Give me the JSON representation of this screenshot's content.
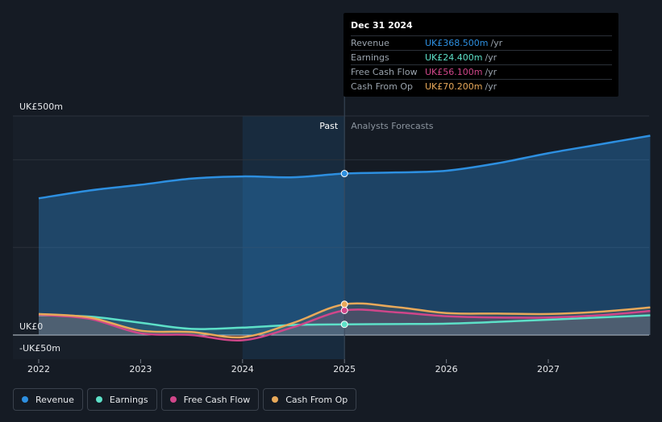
{
  "chart_data": {
    "type": "line",
    "y_axis": {
      "top_label": "UK£500m",
      "zero_label": "UK£0",
      "bottom_label": "-UK£50m",
      "ylim": [
        -50,
        500
      ]
    },
    "x_ticks": [
      "2022",
      "2023",
      "2024",
      "2025",
      "2026",
      "2027"
    ],
    "divider_labels": {
      "past": "Past",
      "forecast": "Analysts Forecasts"
    },
    "series": [
      {
        "name": "Revenue",
        "color": "#2d8fe0",
        "points": [
          [
            2022.0,
            312
          ],
          [
            2022.5,
            330
          ],
          [
            2023.0,
            343
          ],
          [
            2023.5,
            357
          ],
          [
            2024.0,
            362
          ],
          [
            2024.5,
            360
          ],
          [
            2025.0,
            368.5
          ],
          [
            2025.5,
            371
          ],
          [
            2026.0,
            375
          ],
          [
            2026.5,
            392
          ],
          [
            2027.0,
            415
          ],
          [
            2027.5,
            435
          ],
          [
            2028.0,
            455
          ]
        ]
      },
      {
        "name": "Earnings",
        "color": "#5de0c8",
        "points": [
          [
            2022.0,
            45
          ],
          [
            2022.5,
            42
          ],
          [
            2023.0,
            28
          ],
          [
            2023.5,
            14
          ],
          [
            2024.0,
            17
          ],
          [
            2024.5,
            23
          ],
          [
            2025.0,
            24.4
          ],
          [
            2025.5,
            25
          ],
          [
            2026.0,
            26
          ],
          [
            2026.5,
            30
          ],
          [
            2027.0,
            35
          ],
          [
            2027.5,
            40
          ],
          [
            2028.0,
            45
          ]
        ]
      },
      {
        "name": "Free Cash Flow",
        "color": "#d0468a",
        "points": [
          [
            2022.0,
            46
          ],
          [
            2022.5,
            37
          ],
          [
            2023.0,
            4
          ],
          [
            2023.5,
            0
          ],
          [
            2024.0,
            -12
          ],
          [
            2024.5,
            18
          ],
          [
            2025.0,
            56.1
          ],
          [
            2025.5,
            52
          ],
          [
            2026.0,
            43
          ],
          [
            2026.5,
            40
          ],
          [
            2027.0,
            40
          ],
          [
            2027.5,
            45
          ],
          [
            2028.0,
            55
          ]
        ]
      },
      {
        "name": "Cash From Op",
        "color": "#e8a95a",
        "points": [
          [
            2022.0,
            48
          ],
          [
            2022.5,
            40
          ],
          [
            2023.0,
            10
          ],
          [
            2023.5,
            7
          ],
          [
            2024.0,
            -5
          ],
          [
            2024.5,
            28
          ],
          [
            2025.0,
            70.2
          ],
          [
            2025.5,
            64
          ],
          [
            2026.0,
            50
          ],
          [
            2026.5,
            49
          ],
          [
            2027.0,
            48
          ],
          [
            2027.5,
            53
          ],
          [
            2028.0,
            63
          ]
        ]
      }
    ],
    "tooltip": {
      "date": "Dec 31 2024",
      "rows": [
        {
          "name": "Revenue",
          "value": "UK£368.500m",
          "unit": "/yr",
          "color": "#2d8fe0"
        },
        {
          "name": "Earnings",
          "value": "UK£24.400m",
          "unit": "/yr",
          "color": "#5de0c8"
        },
        {
          "name": "Free Cash Flow",
          "value": "UK£56.100m",
          "unit": "/yr",
          "color": "#d0468a"
        },
        {
          "name": "Cash From Op",
          "value": "UK£70.200m",
          "unit": "/yr",
          "color": "#e8a95a"
        }
      ]
    },
    "legend": [
      {
        "name": "Revenue",
        "color": "#2d8fe0"
      },
      {
        "name": "Earnings",
        "color": "#5de0c8"
      },
      {
        "name": "Free Cash Flow",
        "color": "#d0468a"
      },
      {
        "name": "Cash From Op",
        "color": "#e8a95a"
      }
    ],
    "highlight_x": 2025.0,
    "past_shade_start": 2024.0
  }
}
